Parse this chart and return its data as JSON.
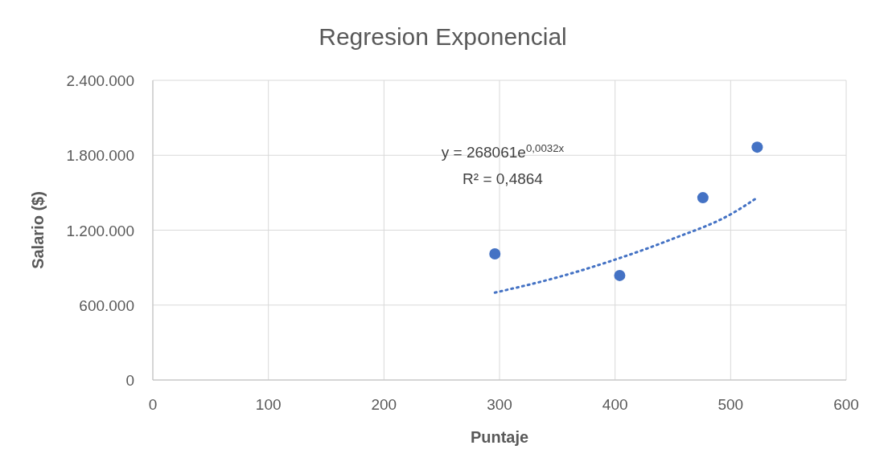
{
  "chart_data": {
    "type": "scatter",
    "title": "Regresion Exponencial",
    "xlabel": "Puntaje",
    "ylabel": "Salario ($)",
    "xlim": [
      0,
      600
    ],
    "xticks": [
      0,
      100,
      200,
      300,
      400,
      500,
      600
    ],
    "ylim": [
      0,
      2400000
    ],
    "yticks": [
      0,
      {
        "value": 600000,
        "label": "600.000"
      },
      {
        "value": 1200000,
        "label": "1.200.000"
      },
      {
        "value": 1800000,
        "label": "1.800.000"
      },
      {
        "value": 2400000,
        "label": "2.400.000"
      }
    ],
    "grid": true,
    "marker": "circle",
    "series": [
      {
        "color": "#4472c4",
        "x": [
          296,
          404,
          476,
          523
        ],
        "values": [
          1010000,
          837000,
          1460000,
          1865000
        ]
      },
      {
        "type": "line",
        "color": "#4472c4",
        "line_style": "dotted",
        "marker": "none",
        "x": [
          296,
          350,
          400,
          450,
          500,
          523
        ],
        "values": [
          700000,
          822000,
          964000,
          1131000,
          1327000,
          1460000
        ]
      }
    ],
    "annotations": [
      "y = 268061e$^{0,0032x}$",
      "R² = 0,4864"
    ]
  }
}
